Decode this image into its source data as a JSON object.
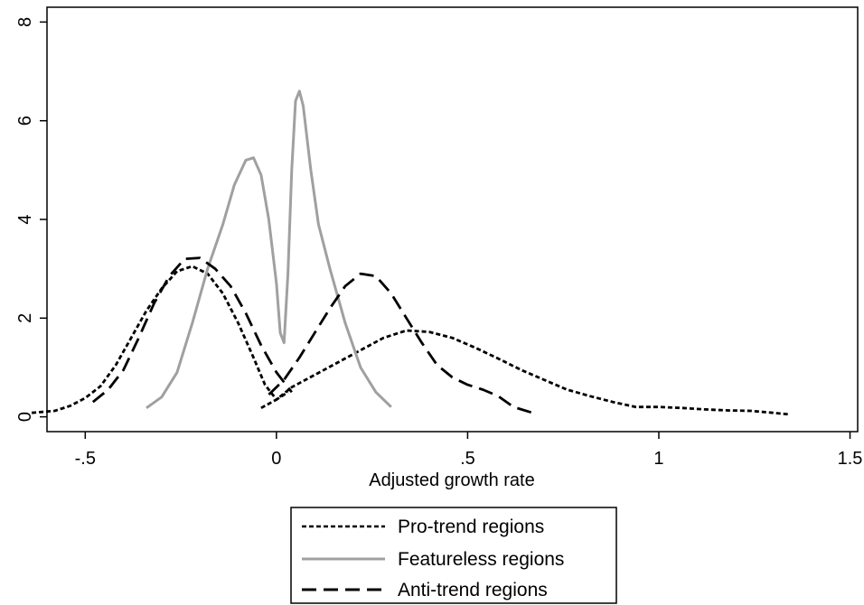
{
  "chart_data": {
    "type": "line",
    "title": "",
    "xlabel": "Adjusted growth rate",
    "ylabel": "",
    "xlim": [
      -0.6,
      1.52
    ],
    "ylim": [
      -0.3,
      8.3
    ],
    "xticks": [
      {
        "value": -0.5,
        "label": "-.5"
      },
      {
        "value": 0,
        "label": "0"
      },
      {
        "value": 0.5,
        "label": ".5"
      },
      {
        "value": 1,
        "label": "1"
      },
      {
        "value": 1.5,
        "label": "1.5"
      }
    ],
    "yticks": [
      {
        "value": 0,
        "label": "0"
      },
      {
        "value": 2,
        "label": "2"
      },
      {
        "value": 4,
        "label": "4"
      },
      {
        "value": 6,
        "label": "6"
      },
      {
        "value": 8,
        "label": "8"
      }
    ],
    "grid": false,
    "legend_position": "bottom",
    "series": [
      {
        "name": "Pro-trend regions",
        "style": "short-dash",
        "color": "#000000",
        "points_a": [
          [
            -0.64,
            0.08
          ],
          [
            -0.58,
            0.12
          ],
          [
            -0.54,
            0.22
          ],
          [
            -0.5,
            0.38
          ],
          [
            -0.46,
            0.62
          ],
          [
            -0.42,
            1.05
          ],
          [
            -0.38,
            1.6
          ],
          [
            -0.34,
            2.15
          ],
          [
            -0.3,
            2.6
          ],
          [
            -0.26,
            2.95
          ],
          [
            -0.22,
            3.05
          ],
          [
            -0.18,
            2.9
          ],
          [
            -0.14,
            2.5
          ],
          [
            -0.1,
            1.9
          ],
          [
            -0.06,
            1.2
          ],
          [
            -0.03,
            0.65
          ],
          [
            0.0,
            0.35
          ],
          [
            0.03,
            0.5
          ]
        ],
        "points_b": [
          [
            -0.04,
            0.18
          ],
          [
            0.0,
            0.35
          ],
          [
            0.04,
            0.6
          ],
          [
            0.1,
            0.85
          ],
          [
            0.16,
            1.1
          ],
          [
            0.22,
            1.35
          ],
          [
            0.28,
            1.6
          ],
          [
            0.34,
            1.75
          ],
          [
            0.4,
            1.72
          ],
          [
            0.46,
            1.6
          ],
          [
            0.52,
            1.4
          ],
          [
            0.58,
            1.18
          ],
          [
            0.64,
            0.95
          ],
          [
            0.7,
            0.75
          ],
          [
            0.76,
            0.55
          ],
          [
            0.82,
            0.42
          ],
          [
            0.88,
            0.3
          ],
          [
            0.94,
            0.2
          ],
          [
            1.0,
            0.2
          ],
          [
            1.06,
            0.18
          ],
          [
            1.12,
            0.15
          ],
          [
            1.18,
            0.13
          ],
          [
            1.24,
            0.12
          ],
          [
            1.3,
            0.08
          ],
          [
            1.34,
            0.05
          ]
        ]
      },
      {
        "name": "Featureless regions",
        "style": "solid",
        "color": "#a0a0a0",
        "points": [
          [
            -0.34,
            0.18
          ],
          [
            -0.3,
            0.4
          ],
          [
            -0.26,
            0.9
          ],
          [
            -0.22,
            1.9
          ],
          [
            -0.18,
            3.0
          ],
          [
            -0.14,
            3.9
          ],
          [
            -0.11,
            4.7
          ],
          [
            -0.08,
            5.2
          ],
          [
            -0.06,
            5.25
          ],
          [
            -0.04,
            4.9
          ],
          [
            -0.02,
            4.0
          ],
          [
            0.0,
            2.7
          ],
          [
            0.01,
            1.7
          ],
          [
            0.02,
            1.5
          ],
          [
            0.03,
            2.9
          ],
          [
            0.04,
            5.0
          ],
          [
            0.05,
            6.4
          ],
          [
            0.06,
            6.6
          ],
          [
            0.07,
            6.3
          ],
          [
            0.09,
            5.0
          ],
          [
            0.11,
            3.9
          ],
          [
            0.14,
            3.0
          ],
          [
            0.18,
            1.9
          ],
          [
            0.22,
            1.0
          ],
          [
            0.26,
            0.5
          ],
          [
            0.3,
            0.2
          ]
        ]
      },
      {
        "name": "Anti-trend regions",
        "style": "long-dash",
        "color": "#000000",
        "points_a": [
          [
            -0.48,
            0.3
          ],
          [
            -0.44,
            0.55
          ],
          [
            -0.4,
            0.95
          ],
          [
            -0.36,
            1.6
          ],
          [
            -0.32,
            2.3
          ],
          [
            -0.28,
            2.85
          ],
          [
            -0.24,
            3.2
          ],
          [
            -0.2,
            3.22
          ],
          [
            -0.16,
            3.0
          ],
          [
            -0.12,
            2.65
          ],
          [
            -0.08,
            2.1
          ],
          [
            -0.04,
            1.45
          ],
          [
            0.0,
            0.9
          ],
          [
            0.04,
            0.5
          ]
        ],
        "points_b": [
          [
            -0.02,
            0.45
          ],
          [
            0.02,
            0.75
          ],
          [
            0.06,
            1.2
          ],
          [
            0.1,
            1.7
          ],
          [
            0.14,
            2.2
          ],
          [
            0.18,
            2.65
          ],
          [
            0.22,
            2.9
          ],
          [
            0.26,
            2.85
          ],
          [
            0.3,
            2.5
          ],
          [
            0.34,
            2.0
          ],
          [
            0.38,
            1.5
          ],
          [
            0.42,
            1.05
          ],
          [
            0.46,
            0.8
          ],
          [
            0.5,
            0.65
          ],
          [
            0.54,
            0.55
          ],
          [
            0.58,
            0.42
          ],
          [
            0.62,
            0.2
          ],
          [
            0.67,
            0.08
          ]
        ]
      }
    ]
  }
}
